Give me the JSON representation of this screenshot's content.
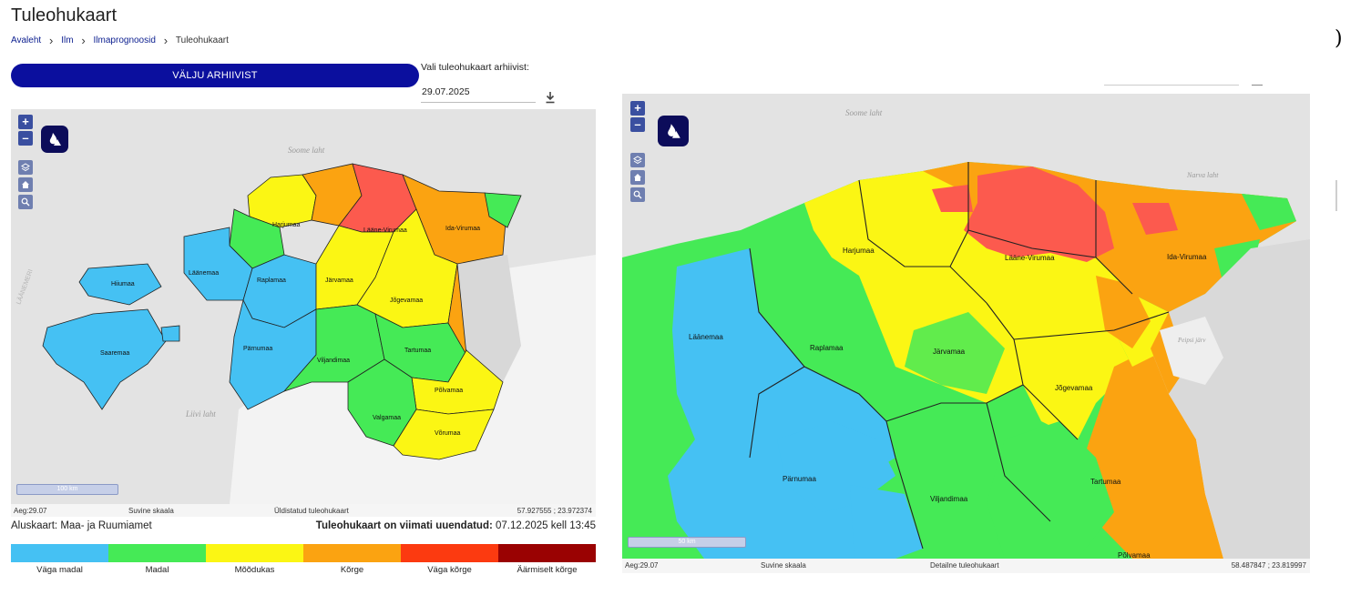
{
  "page": {
    "title": "Tuleohukaart",
    "stray_char": ")"
  },
  "breadcrumb": [
    {
      "label": "Avaleht"
    },
    {
      "label": "Ilm"
    },
    {
      "label": "Ilmaprognoosid"
    },
    {
      "label": "Tuleohukaart"
    }
  ],
  "archive": {
    "exit_button": "VÄLJU ARHIIVIST",
    "select_label": "Vali tuleohukaart arhiivist:",
    "date_value": "29.07.2025"
  },
  "left_map": {
    "sea_labels": [
      "Soome laht",
      "Liivi laht",
      "LÄÄNEMERI"
    ],
    "regions": [
      "Harjumaa",
      "Lääne-Virumaa",
      "Ida-Virumaa",
      "Läänemaa",
      "Hiiumaa",
      "Raplamaa",
      "Järvamaa",
      "Jõgevamaa",
      "Saaremaa",
      "Pärnumaa",
      "Viljandimaa",
      "Tartumaa",
      "Põlvamaa",
      "Valgamaa",
      "Võrumaa"
    ],
    "scale": "100 km",
    "status": {
      "age": "Aeg:29.07",
      "scale_type": "Suvine skaala",
      "map_type": "Üldistatud tuleohukaart",
      "coords": "57.927555 ; 23.972374"
    }
  },
  "right_map": {
    "sea_labels": [
      "Soome laht",
      "Narva laht",
      "Peipsi järv"
    ],
    "regions": [
      "Harjumaa",
      "Lääne-Virumaa",
      "Ida-Virumaa",
      "Läänemaa",
      "Raplamaa",
      "Järvamaa",
      "Jõgevamaa",
      "Pärnumaa",
      "Viljandimaa",
      "Tartumaa",
      "Põlvamaa"
    ],
    "scale": "50 km",
    "status": {
      "age": "Aeg:29.07",
      "scale_type": "Suvine skaala",
      "map_type": "Detailne tuleohukaart",
      "coords": "58.487847 ; 23.819997"
    }
  },
  "info": {
    "base_map": "Aluskaart: Maa- ja Ruumiamet",
    "updated_label": "Tuleohukaart on viimati uuendatud:",
    "updated_value": " 07.12.2025 kell 13:45"
  },
  "legend": [
    {
      "label": "Väga madal",
      "color": "#45c1f3"
    },
    {
      "label": "Madal",
      "color": "#45ea56"
    },
    {
      "label": "Mõõdukas",
      "color": "#fbf614"
    },
    {
      "label": "Kõrge",
      "color": "#fba311"
    },
    {
      "label": "Väga kõrge",
      "color": "#fc3a10"
    },
    {
      "label": "Äärmiselt kõrge",
      "color": "#9a0202"
    }
  ],
  "icons": [
    "chevron-right-icon",
    "download-icon",
    "zoom-in-icon",
    "zoom-out-icon",
    "fire-icon",
    "layers-icon",
    "home-icon",
    "search-icon"
  ]
}
